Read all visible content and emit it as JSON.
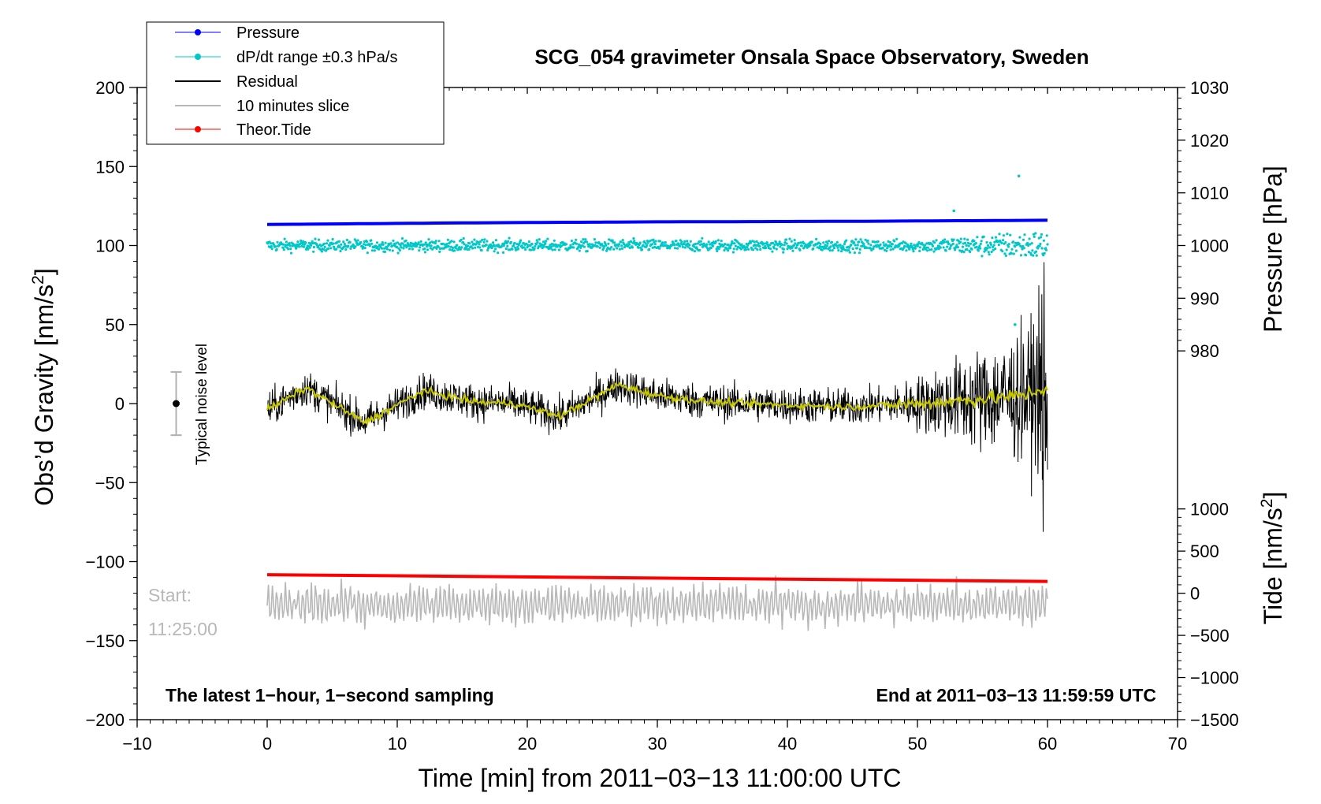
{
  "chart_data": {
    "type": "line",
    "title": "SCG_054 gravimeter Onsala Space Observatory, Sweden",
    "xlabel": "Time [min] from 2011−03−13 11:00:00 UTC",
    "ylabel": "Obs’d Gravity [nm/s",
    "ylabel_sup": "2",
    "ylabel_close": "]",
    "y2label_pressure": "Pressure [hPa]",
    "y2label_tide": "Tide [nm/s",
    "y2label_tide_sup": "2",
    "y2label_tide_close": "]",
    "xlim": [
      -10,
      70
    ],
    "ylim": [
      -200,
      200
    ],
    "x_ticks": [
      -10,
      0,
      10,
      20,
      30,
      40,
      50,
      60,
      70
    ],
    "x_tick_labels": [
      "−10",
      "0",
      "10",
      "20",
      "30",
      "40",
      "50",
      "60",
      "70"
    ],
    "y_ticks": [
      200,
      150,
      100,
      50,
      0,
      -50,
      -100,
      -150,
      -200
    ],
    "y_tick_labels": [
      "200",
      "150",
      "100",
      "50",
      "0",
      "−50",
      "−100",
      "−150",
      "−200"
    ],
    "pressure_ticks": [
      1030,
      1020,
      1010,
      1000,
      990,
      980
    ],
    "pressure_tick_labels": [
      "1030",
      "1020",
      "1010",
      "1000",
      "990",
      "980"
    ],
    "pressure_scale": {
      "p_at_y200": 1030,
      "p_at_y100": 1000
    },
    "tide_ticks": [
      1000,
      500,
      0,
      -500,
      -1000,
      -1500
    ],
    "tide_tick_labels": [
      "1000",
      "500",
      "0",
      "−500",
      "−1000",
      "−1500"
    ],
    "tide_scale": {
      "t_at_y_neg200": -1500,
      "t_at_y_neg66_7": 1000
    },
    "legend": [
      {
        "label": "Pressure",
        "color": "#0000ff",
        "marker": "dot"
      },
      {
        "label": "dP/dt range ±0.3 hPa/s",
        "color": "#00c8c8",
        "marker": "dot"
      },
      {
        "label": "Residual",
        "color": "#000000",
        "marker": "none"
      },
      {
        "label": "10 minutes slice",
        "color": "#b8b8b8",
        "marker": "none"
      },
      {
        "label": "Theor.Tide",
        "color": "#ff0000",
        "marker": "dot"
      }
    ],
    "series": [
      {
        "name": "Pressure",
        "axis": "pressure",
        "x": [
          0,
          15,
          30,
          45,
          60
        ],
        "values": [
          1004.0,
          1004.3,
          1004.5,
          1004.6,
          1004.8
        ]
      },
      {
        "name": "dP/dt range ±0.3 hPa/s",
        "axis": "left",
        "x_range": [
          0,
          60
        ],
        "center": 100,
        "spread": 4
      },
      {
        "name": "Residual",
        "axis": "left",
        "x_range": [
          0,
          60
        ],
        "amplitude_early": 10,
        "amplitude_late": 30
      },
      {
        "name": "Smoothed residual",
        "axis": "left",
        "color": "#c8c800",
        "x": [
          0,
          3,
          7.5,
          12,
          16,
          19,
          22.5,
          27,
          30,
          34,
          40,
          45,
          50,
          55,
          58,
          60
        ],
        "values": [
          -4,
          10,
          -12,
          8,
          1,
          0,
          -8,
          12,
          5,
          1,
          -1,
          -2,
          0,
          3,
          5,
          10
        ]
      },
      {
        "name": "10 minutes slice",
        "axis": "left",
        "x_range": [
          0,
          60
        ],
        "center": -127,
        "amplitude": 12
      },
      {
        "name": "Theor.Tide",
        "axis": "tide",
        "x": [
          0,
          60
        ],
        "values": [
          220,
          140
        ]
      }
    ],
    "noise_bar": {
      "x": -7,
      "center": 0,
      "low": -20,
      "high": 20,
      "label": "Typical noise level"
    },
    "slice_label_line1": "Start:",
    "slice_label_line2": "11:25:00",
    "note_left": "The latest 1−hour, 1−second sampling",
    "note_right": "End at 2011−03−13 11:59:59 UTC",
    "colors": {
      "pressure": "#0000ff",
      "dpdt": "#00c8c8",
      "residual": "#000000",
      "smooth": "#c8c800",
      "slice": "#b8b8b8",
      "tide": "#ff0000",
      "noise": "#b0b0b0"
    }
  }
}
